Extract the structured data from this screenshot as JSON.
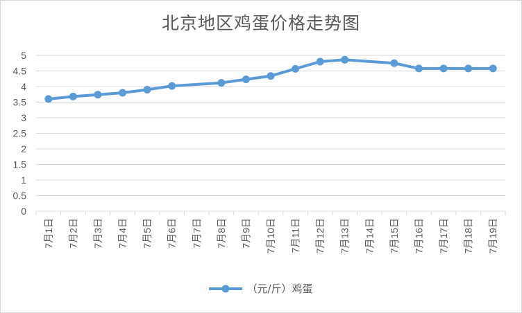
{
  "chart_data": {
    "type": "line",
    "title": "北京地区鸡蛋价格走势图",
    "categories": [
      "7月1日",
      "7月2日",
      "7月3日",
      "7月4日",
      "7月5日",
      "7月6日",
      "7月7日",
      "7月8日",
      "7月9日",
      "7月10日",
      "7月11日",
      "7月12日",
      "7月13日",
      "7月14日",
      "7月15日",
      "7月16日",
      "7月17日",
      "7月18日",
      "7月19日"
    ],
    "series": [
      {
        "name": "（元/斤）鸡蛋",
        "color": "#5b9bd5",
        "points": [
          {
            "x": "7月1日",
            "y": 3.6
          },
          {
            "x": "7月2日",
            "y": 3.68
          },
          {
            "x": "7月3日",
            "y": 3.74
          },
          {
            "x": "7月4日",
            "y": 3.8
          },
          {
            "x": "7月5日",
            "y": 3.9
          },
          {
            "x": "7月6日",
            "y": 4.02
          },
          {
            "x": "7月8日",
            "y": 4.12
          },
          {
            "x": "7月9日",
            "y": 4.23
          },
          {
            "x": "7月10日",
            "y": 4.34
          },
          {
            "x": "7月11日",
            "y": 4.57
          },
          {
            "x": "7月12日",
            "y": 4.8
          },
          {
            "x": "7月13日",
            "y": 4.86
          },
          {
            "x": "7月15日",
            "y": 4.75
          },
          {
            "x": "7月16日",
            "y": 4.58
          },
          {
            "x": "7月17日",
            "y": 4.58
          },
          {
            "x": "7月18日",
            "y": 4.58
          },
          {
            "x": "7月19日",
            "y": 4.58
          }
        ]
      }
    ],
    "yticks": [
      "0",
      "0.5",
      "1",
      "1.5",
      "2",
      "2.5",
      "3",
      "3.5",
      "4",
      "4.5",
      "5"
    ],
    "ylim": [
      0,
      5
    ],
    "grid": true,
    "legend_position": "bottom"
  }
}
